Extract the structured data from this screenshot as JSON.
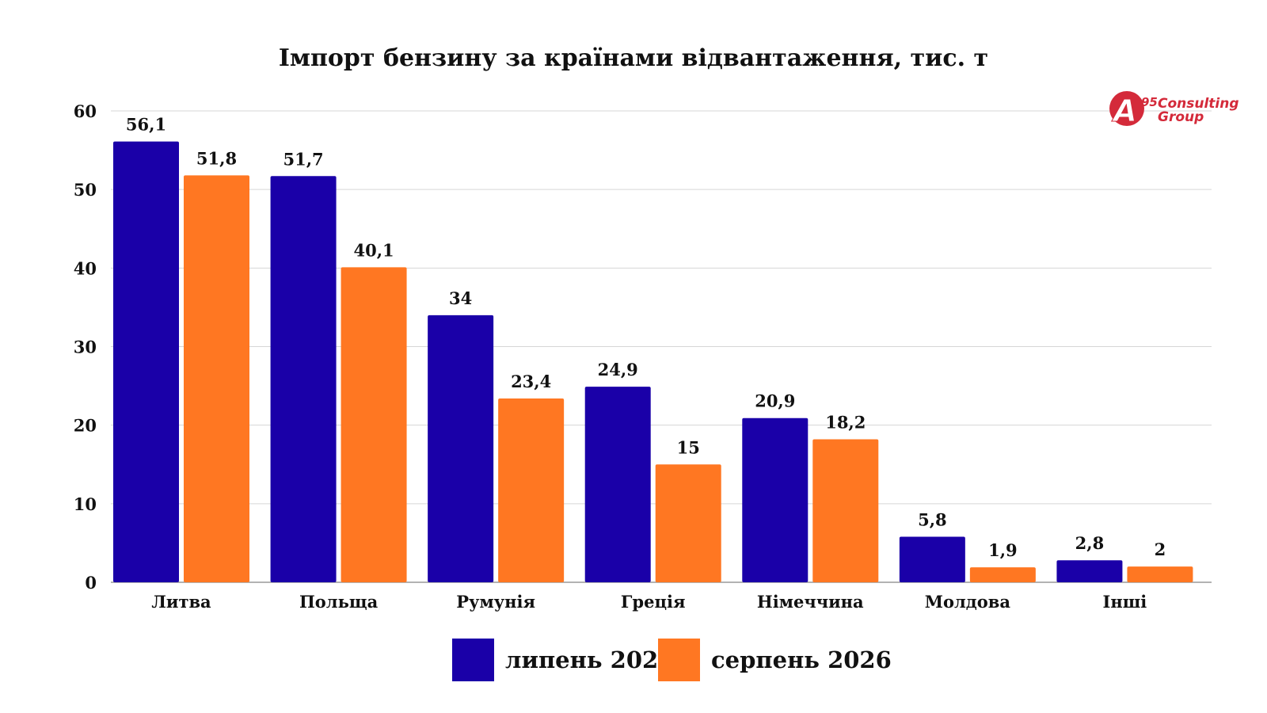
{
  "chart_data": {
    "type": "bar",
    "title": "Імпорт бензину за країнами відвантаження, тис. т",
    "categories": [
      "Литва",
      "Польща",
      "Румунія",
      "Греція",
      "Німеччина",
      "Молдова",
      "Інші"
    ],
    "series": [
      {
        "name": "липень 2026",
        "color": "#1a00a8",
        "values": [
          56.1,
          51.7,
          34,
          24.9,
          20.9,
          5.8,
          2.8
        ],
        "labels": [
          "56,1",
          "51,7",
          "34",
          "24,9",
          "20,9",
          "5,8",
          "2,8"
        ]
      },
      {
        "name": "серпень 2026",
        "color": "#ff7722",
        "values": [
          51.8,
          40.1,
          23.4,
          15,
          18.2,
          1.9,
          2
        ],
        "labels": [
          "51,8",
          "40,1",
          "23,4",
          "15",
          "18,2",
          "1,9",
          "2"
        ]
      }
    ],
    "ylim": [
      0,
      60
    ],
    "yticks": [
      0,
      10,
      20,
      30,
      40,
      50,
      60
    ],
    "grid": true,
    "legend": "bottom",
    "xlabel": "",
    "ylabel": ""
  },
  "logo": {
    "mark": "A",
    "mark_sup": "95",
    "line1": "Consulting",
    "line2": "Group",
    "color": "#d42a3a"
  }
}
